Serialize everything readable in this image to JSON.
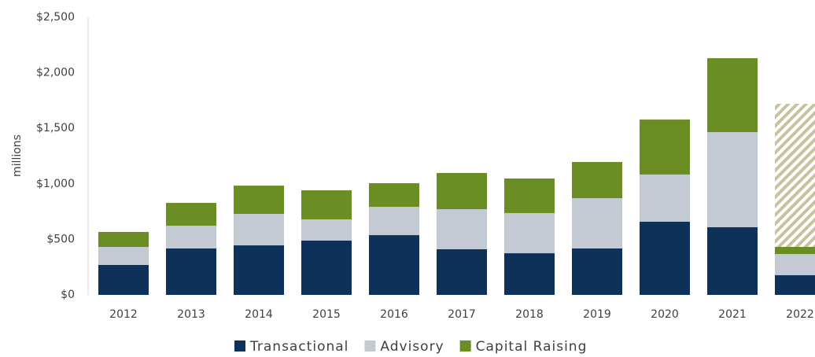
{
  "chart_data": {
    "type": "stacked_bar",
    "ylabel": "millions",
    "categories": [
      "2012",
      "2013",
      "2014",
      "2015",
      "2016",
      "2017",
      "2018",
      "2019",
      "2020",
      "2021",
      "2022"
    ],
    "series": [
      {
        "name": "Transactional",
        "color": "#0d3158",
        "values": [
          270,
          418,
          446,
          489,
          538,
          411,
          375,
          418,
          659,
          609,
          177
        ]
      },
      {
        "name": "Advisory",
        "color": "#c3cad4",
        "values": [
          162,
          205,
          283,
          191,
          255,
          361,
          362,
          453,
          425,
          857,
          191
        ]
      },
      {
        "name": "Capital Raising",
        "color": "#6a8e23",
        "values": [
          135,
          206,
          255,
          262,
          213,
          326,
          311,
          326,
          495,
          666,
          64
        ]
      },
      {
        "color": "#c9c29f",
        "pattern": "hatch",
        "values": [
          null,
          null,
          null,
          null,
          null,
          null,
          null,
          null,
          null,
          null,
          1289
        ]
      }
    ],
    "ylim": [
      0,
      2500
    ],
    "yticks": [
      {
        "value": 0,
        "label": "$0"
      },
      {
        "value": 500,
        "label": "$500"
      },
      {
        "value": 1000,
        "label": "$1,000"
      },
      {
        "value": 1500,
        "label": "$1,500"
      },
      {
        "value": 2000,
        "label": "$2,000"
      },
      {
        "value": 2500,
        "label": "$2,500"
      }
    ],
    "legend": "bottom"
  }
}
